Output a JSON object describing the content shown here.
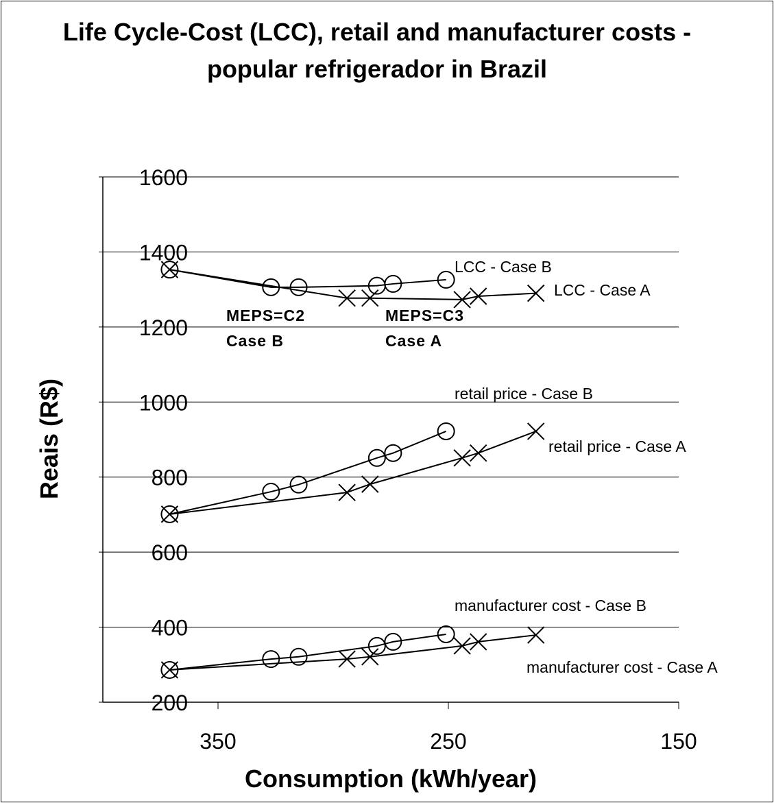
{
  "chart_data": {
    "type": "line",
    "title": "Life Cycle-Cost (LCC), retail and manufacturer costs - popular  refrigerador in Brazil",
    "xlabel": "Consumption (kWh/year)",
    "ylabel": "Reais (R$)",
    "xlim": [
      400,
      150
    ],
    "xticks": [
      350,
      250,
      150
    ],
    "ylim": [
      200,
      1600
    ],
    "yticks": [
      200,
      400,
      600,
      800,
      1000,
      1200,
      1400,
      1600
    ],
    "grid": true,
    "annotations": [
      "MEPS=C2",
      "Case B",
      "MEPS=C3",
      "Case A"
    ],
    "series": [
      {
        "name": "LCC - Case B",
        "marker": "circle",
        "color": "#000000",
        "x": [
          371,
          327,
          315,
          281,
          274,
          251
        ],
        "values": [
          1353,
          1306,
          1306,
          1310,
          1315,
          1326
        ]
      },
      {
        "name": "LCC - Case A",
        "marker": "cross",
        "color": "#000000",
        "x": [
          371,
          294,
          284,
          244,
          237,
          212
        ],
        "values": [
          1353,
          1277,
          1277,
          1273,
          1282,
          1290
        ]
      },
      {
        "name": "retail price - Case B",
        "marker": "circle",
        "color": "#000000",
        "x": [
          371,
          327,
          315,
          281,
          274,
          251
        ],
        "values": [
          701,
          761,
          780,
          851,
          864,
          922
        ]
      },
      {
        "name": "retail price - Case A",
        "marker": "cross",
        "color": "#000000",
        "x": [
          371,
          294,
          284,
          244,
          237,
          212
        ],
        "values": [
          701,
          759,
          781,
          851,
          864,
          922
        ]
      },
      {
        "name": "manufacturer cost - Case B",
        "marker": "circle",
        "color": "#000000",
        "x": [
          371,
          327,
          315,
          281,
          274,
          251
        ],
        "values": [
          286,
          315,
          321,
          350,
          361,
          381
        ]
      },
      {
        "name": "manufacturer cost - Case A",
        "marker": "cross",
        "color": "#000000",
        "x": [
          371,
          294,
          284,
          244,
          237,
          212
        ],
        "values": [
          286,
          315,
          321,
          350,
          361,
          379
        ]
      }
    ]
  }
}
